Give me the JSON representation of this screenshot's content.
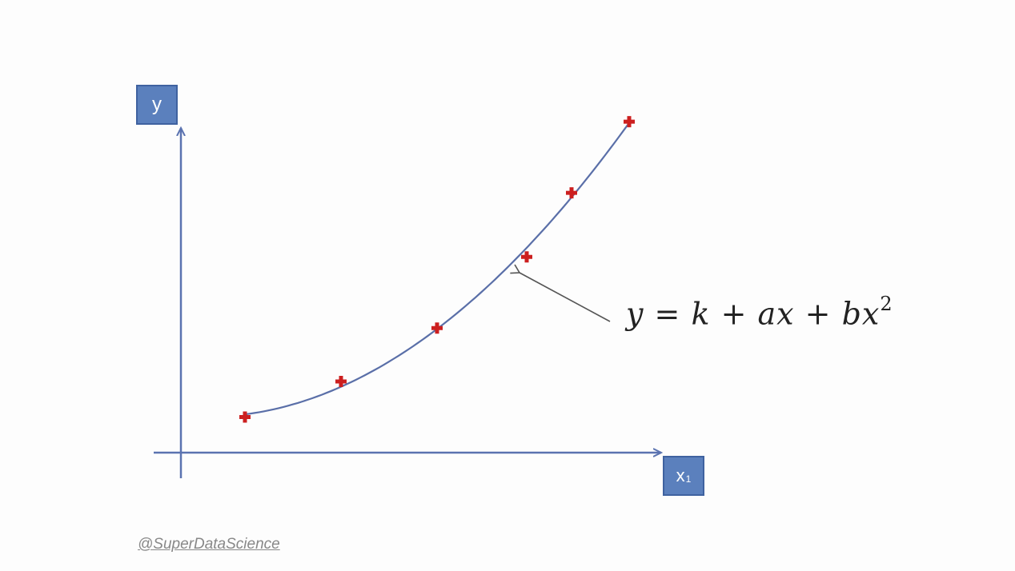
{
  "chart_data": {
    "type": "scatter",
    "title": "",
    "xlabel": "x",
    "xlabel_subscript": "1",
    "ylabel": "y",
    "points": [
      {
        "x": 1.0,
        "y": 1.0
      },
      {
        "x": 2.5,
        "y": 2.0
      },
      {
        "x": 4.0,
        "y": 3.5
      },
      {
        "x": 5.4,
        "y": 5.5
      },
      {
        "x": 6.1,
        "y": 7.3
      },
      {
        "x": 7.0,
        "y": 9.3
      }
    ],
    "fit": {
      "type": "polynomial",
      "degree": 2,
      "color": "#5a6fa8"
    },
    "marker_color": "#cc1f1f",
    "axis_color": "#5b73b0",
    "grid": false,
    "legend": "none"
  },
  "annotation": {
    "equation_main": "y = k + ax + bx",
    "equation_sup": "2"
  },
  "watermark": "@SuperDataScience"
}
